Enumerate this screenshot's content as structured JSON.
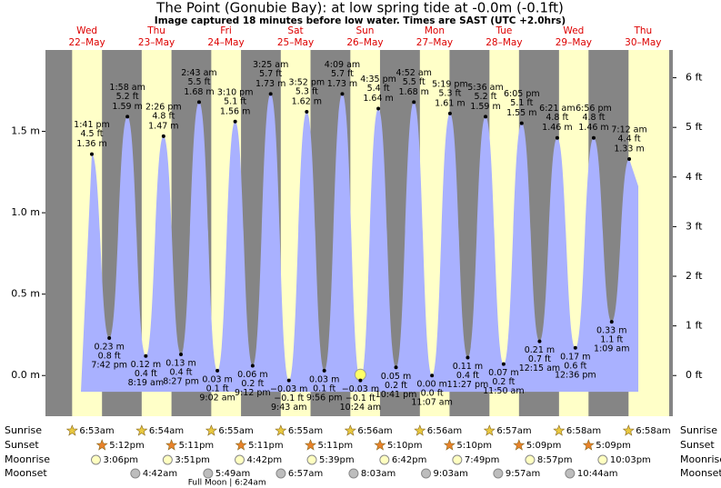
{
  "chart_data": {
    "type": "tide",
    "title": "The Point (Gonubie Bay): at low  spring tide at -0.0m (-0.1ft)",
    "subtitle": "Image captured 18 minutes before low water. Times are SAST (UTC +2.0hrs)",
    "ylim": [
      -0.25,
      2.0
    ],
    "yticks": [
      {
        "value": 0,
        "label": "0.0 m"
      },
      {
        "value": 0.5,
        "label": "0.5 m"
      },
      {
        "value": 1,
        "label": "1.0 m"
      },
      {
        "value": 1.5,
        "label": "1.5 m"
      }
    ],
    "y2lim": [
      -0.82,
      6.56
    ],
    "y2ticks": [
      {
        "value": 0,
        "label": "0 ft"
      },
      {
        "value": 1,
        "label": "1 ft"
      },
      {
        "value": 2,
        "label": "2 ft"
      },
      {
        "value": 3,
        "label": "3 ft"
      },
      {
        "value": 4,
        "label": "4 ft"
      },
      {
        "value": 5,
        "label": "5 ft"
      },
      {
        "value": 6,
        "label": "6 ft"
      }
    ],
    "night_color": "#858585",
    "day_color": "#ffffc8",
    "water_color": "#a9b1ff",
    "header_color": "#dd0000",
    "row_labels": {
      "sunrise": "Sunrise",
      "sunset": "Sunset",
      "moonrise": "Moonrise",
      "moonset": "Moonset"
    },
    "days": [
      {
        "weekday": "Wed",
        "date": "22–May",
        "sunrise": "6:53am",
        "sunset": "5:12pm",
        "moonrise": "3:06pm",
        "moonset": null,
        "phase": null,
        "tides": [
          {
            "time": "1:41 pm",
            "value": 1.36,
            "value_label": "1.36 m",
            "ft_label": "4.5 ft"
          },
          {
            "time": "7:42 pm",
            "value": 0.23,
            "value_label": "0.23 m",
            "ft_label": "0.8 ft"
          }
        ]
      },
      {
        "weekday": "Thu",
        "date": "23–May",
        "sunrise": "6:54am",
        "sunset": "5:11pm",
        "moonrise": "3:51pm",
        "moonset": "4:42am",
        "phase": null,
        "tides": [
          {
            "time": "1:58 am",
            "value": 1.59,
            "value_label": "1.59 m",
            "ft_label": "5.2 ft"
          },
          {
            "time": "8:19 am",
            "value": 0.12,
            "value_label": "0.12 m",
            "ft_label": "0.4 ft"
          },
          {
            "time": "2:26 pm",
            "value": 1.47,
            "value_label": "1.47 m",
            "ft_label": "4.8 ft"
          },
          {
            "time": "8:27 pm",
            "value": 0.13,
            "value_label": "0.13 m",
            "ft_label": "0.4 ft"
          }
        ]
      },
      {
        "weekday": "Fri",
        "date": "24–May",
        "sunrise": "6:55am",
        "sunset": "5:11pm",
        "moonrise": "4:42pm",
        "moonset": "5:49am",
        "phase": "Full Moon | 6:24am",
        "tides": [
          {
            "time": "2:43 am",
            "value": 1.68,
            "value_label": "1.68 m",
            "ft_label": "5.5 ft"
          },
          {
            "time": "9:02 am",
            "value": 0.03,
            "value_label": "0.03 m",
            "ft_label": "0.1 ft"
          },
          {
            "time": "3:10 pm",
            "value": 1.56,
            "value_label": "1.56 m",
            "ft_label": "5.1 ft"
          },
          {
            "time": "9:12 pm",
            "value": 0.06,
            "value_label": "0.06 m",
            "ft_label": "0.2 ft"
          }
        ]
      },
      {
        "weekday": "Sat",
        "date": "25–May",
        "sunrise": "6:55am",
        "sunset": "5:11pm",
        "moonrise": "5:39pm",
        "moonset": "6:57am",
        "phase": null,
        "tides": [
          {
            "time": "3:25 am",
            "value": 1.73,
            "value_label": "1.73 m",
            "ft_label": "5.7 ft"
          },
          {
            "time": "9:43 am",
            "value": -0.03,
            "value_label": "−0.03 m",
            "ft_label": "−0.1 ft"
          },
          {
            "time": "3:52 pm",
            "value": 1.62,
            "value_label": "1.62 m",
            "ft_label": "5.3 ft"
          },
          {
            "time": "9:56 pm",
            "value": 0.03,
            "value_label": "0.03 m",
            "ft_label": "0.1 ft"
          }
        ]
      },
      {
        "weekday": "Sun",
        "date": "26–May",
        "sunrise": "6:56am",
        "sunset": "5:10pm",
        "moonrise": "6:42pm",
        "moonset": "8:03am",
        "phase": null,
        "tides": [
          {
            "time": "4:09 am",
            "value": 1.73,
            "value_label": "1.73 m",
            "ft_label": "5.7 ft"
          },
          {
            "time": "10:24 am",
            "value": -0.03,
            "value_label": "−0.03 m",
            "ft_label": "−0.1 ft"
          },
          {
            "time": "4:35 pm",
            "value": 1.64,
            "value_label": "1.64 m",
            "ft_label": "5.4 ft"
          },
          {
            "time": "10:41 pm",
            "value": 0.05,
            "value_label": "0.05 m",
            "ft_label": "0.2 ft"
          }
        ]
      },
      {
        "weekday": "Mon",
        "date": "27–May",
        "sunrise": "6:56am",
        "sunset": "5:10pm",
        "moonrise": "7:49pm",
        "moonset": "9:03am",
        "phase": null,
        "tides": [
          {
            "time": "4:52 am",
            "value": 1.68,
            "value_label": "1.68 m",
            "ft_label": "5.5 ft"
          },
          {
            "time": "11:07 am",
            "value": 0,
            "value_label": "0.00 m",
            "ft_label": "0.0 ft"
          },
          {
            "time": "5:19 pm",
            "value": 1.61,
            "value_label": "1.61 m",
            "ft_label": "5.3 ft"
          },
          {
            "time": "11:27 pm",
            "value": 0.11,
            "value_label": "0.11 m",
            "ft_label": "0.4 ft"
          }
        ]
      },
      {
        "weekday": "Tue",
        "date": "28–May",
        "sunrise": "6:57am",
        "sunset": "5:09pm",
        "moonrise": "8:57pm",
        "moonset": "9:57am",
        "phase": null,
        "tides": [
          {
            "time": "5:36 am",
            "value": 1.59,
            "value_label": "1.59 m",
            "ft_label": "5.2 ft"
          },
          {
            "time": "11:50 am",
            "value": 0.07,
            "value_label": "0.07 m",
            "ft_label": "0.2 ft"
          },
          {
            "time": "6:05 pm",
            "value": 1.55,
            "value_label": "1.55 m",
            "ft_label": "5.1 ft"
          }
        ]
      },
      {
        "weekday": "Wed",
        "date": "29–May",
        "sunrise": "6:58am",
        "sunset": "5:09pm",
        "moonrise": "10:03pm",
        "moonset": "10:44am",
        "phase": null,
        "tides": [
          {
            "time": "12:15 am",
            "value": 0.21,
            "value_label": "0.21 m",
            "ft_label": "0.7 ft"
          },
          {
            "time": "6:21 am",
            "value": 1.46,
            "value_label": "1.46 m",
            "ft_label": "4.8 ft"
          },
          {
            "time": "12:36 pm",
            "value": 0.17,
            "value_label": "0.17 m",
            "ft_label": "0.6 ft"
          },
          {
            "time": "6:56 pm",
            "value": 1.46,
            "value_label": "1.46 m",
            "ft_label": "4.8 ft"
          }
        ]
      },
      {
        "weekday": "Thu",
        "date": "30–May",
        "sunrise": "6:58am",
        "sunset": null,
        "moonrise": null,
        "moonset": null,
        "phase": null,
        "tides": [
          {
            "time": "1:09 am",
            "value": 0.33,
            "value_label": "0.33 m",
            "ft_label": "1.1 ft"
          },
          {
            "time": "7:12 am",
            "value": 1.33,
            "value_label": "1.33 m",
            "ft_label": "4.4 ft"
          }
        ]
      }
    ]
  }
}
